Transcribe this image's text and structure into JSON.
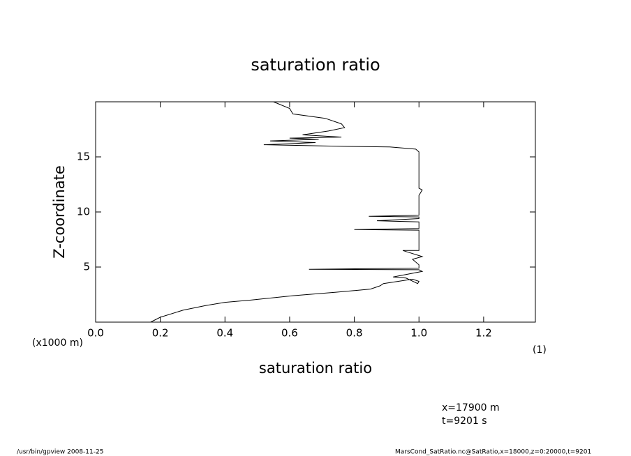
{
  "chart_data": {
    "type": "line",
    "title": "saturation ratio",
    "xlabel": "saturation ratio",
    "ylabel": "Z-coordinate",
    "ylabel_units": "(x1000 m)",
    "xlabel_units": "(1)",
    "annotations": [
      "x=17900 m",
      "t=9201 s"
    ],
    "footer_left": "/usr/bin/gpview  2008-11-25",
    "footer_right": "MarsCond_SatRatio.nc@SatRatio,x=18000,z=0:20000,t=9201",
    "color": "#000000",
    "xlim": [
      0,
      1.36
    ],
    "ylim": [
      0,
      20
    ],
    "xticks": [
      {
        "value": 0,
        "label": "0.0"
      },
      0.2,
      0.4,
      0.6,
      0.8,
      {
        "value": 1,
        "label": "1.0"
      },
      1.2
    ],
    "yticks": [
      5,
      10,
      15
    ],
    "x": [
      0.17,
      0.2,
      0.27,
      0.34,
      0.4,
      0.48,
      0.61,
      0.74,
      0.85,
      0.88,
      0.89,
      0.98,
      1.0,
      0.996,
      0.96,
      0.92,
      1.01,
      1.0,
      0.66,
      1.0,
      1.0,
      0.98,
      1.01,
      0.95,
      1.0,
      1.0,
      0.8,
      1.0,
      1.0,
      0.87,
      1.0,
      1.0,
      0.845,
      1.0,
      1.0,
      1.01,
      1.0,
      1.0,
      1.0,
      0.99,
      0.91,
      0.78,
      0.52,
      0.68,
      0.54,
      0.69,
      0.6,
      0.76,
      0.64,
      0.72,
      0.77,
      0.76,
      0.71,
      0.61,
      0.6,
      0.55
    ],
    "values": [
      0,
      0.44,
      1.08,
      1.5,
      1.8,
      2.0,
      2.4,
      2.7,
      3.0,
      3.3,
      3.5,
      3.9,
      3.7,
      3.5,
      4.0,
      4.1,
      4.6,
      4.75,
      4.8,
      4.9,
      5.2,
      5.7,
      5.95,
      6.5,
      6.5,
      8.35,
      8.4,
      8.5,
      9.1,
      9.2,
      9.4,
      9.55,
      9.6,
      9.7,
      11.5,
      12.0,
      12.15,
      14.05,
      15.45,
      15.7,
      15.9,
      15.95,
      16.1,
      16.3,
      16.45,
      16.6,
      16.7,
      16.8,
      17.0,
      17.35,
      17.65,
      18.0,
      18.5,
      18.9,
      19.4,
      20.0
    ]
  }
}
